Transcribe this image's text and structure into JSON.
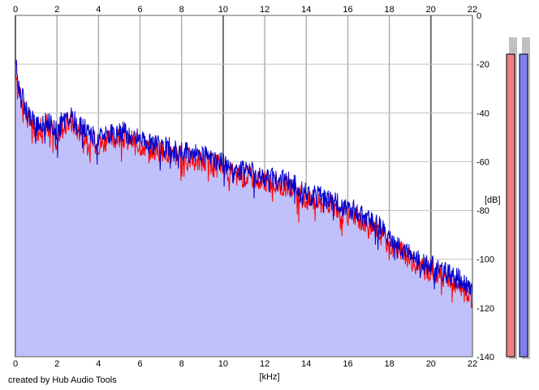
{
  "footer": {
    "credit": "created by Hub Audio Tools"
  },
  "chart_data": {
    "type": "area",
    "xlabel": "[kHz]",
    "ylabel": "[dB]",
    "xlim": [
      0,
      22
    ],
    "ylim": [
      -140,
      0
    ],
    "x_ticks": [
      "0",
      "2",
      "4",
      "6",
      "8",
      "10",
      "12",
      "14",
      "16",
      "18",
      "20",
      "22"
    ],
    "y_ticks": [
      "0",
      "-20",
      "-40",
      "-60",
      "-80",
      "-100",
      "-120",
      "-140"
    ],
    "grid": true,
    "colors": {
      "left": "#ff0000",
      "right": "#0000cc",
      "fill": "#c0c0fa",
      "meter_left": "#f08080",
      "meter_right": "#8080f0"
    },
    "series": [
      {
        "x": [
          0,
          0.1,
          0.2,
          0.4,
          0.6,
          0.8,
          1,
          1.2,
          1.5,
          1.8,
          2,
          2.2,
          2.5,
          2.8,
          3,
          3.2,
          3.5,
          3.8,
          4,
          4.3,
          4.6,
          5,
          5.3,
          5.6,
          6,
          6.3,
          6.6,
          7,
          7.3,
          7.6,
          8,
          8.3,
          8.6,
          9,
          9.3,
          9.6,
          10,
          10.3,
          10.6,
          11,
          11.3,
          11.6,
          12,
          12.3,
          12.6,
          13,
          13.3,
          13.6,
          14,
          14.3,
          14.6,
          15,
          15.3,
          15.6,
          16,
          16.3,
          16.6,
          17,
          17.3,
          17.6,
          18,
          18.3,
          18.6,
          19,
          19.3,
          19.6,
          20,
          20.3,
          20.6,
          21,
          21.3,
          21.6,
          22
        ],
        "values": [
          -22,
          -28,
          -32,
          -38,
          -42,
          -45,
          -48,
          -46,
          -45,
          -48,
          -50,
          -47,
          -44,
          -45,
          -47,
          -48,
          -50,
          -52,
          -53,
          -52,
          -51,
          -50,
          -50,
          -51,
          -53,
          -54,
          -55,
          -56,
          -56,
          -57,
          -58,
          -58,
          -59,
          -60,
          -60,
          -61,
          -62,
          -64,
          -66,
          -66,
          -66,
          -67,
          -68,
          -69,
          -69,
          -70,
          -71,
          -73,
          -76,
          -76,
          -77,
          -77,
          -78,
          -80,
          -82,
          -82,
          -84,
          -87,
          -88,
          -90,
          -94,
          -96,
          -97,
          -100,
          -102,
          -104,
          -104,
          -106,
          -107,
          -108,
          -110,
          -112,
          -116
        ]
      },
      {
        "x": [
          0,
          0.1,
          0.2,
          0.4,
          0.6,
          0.8,
          1,
          1.2,
          1.5,
          1.8,
          2,
          2.2,
          2.5,
          2.8,
          3,
          3.2,
          3.5,
          3.8,
          4,
          4.3,
          4.6,
          5,
          5.3,
          5.6,
          6,
          6.3,
          6.6,
          7,
          7.3,
          7.6,
          8,
          8.3,
          8.6,
          9,
          9.3,
          9.6,
          10,
          10.3,
          10.6,
          11,
          11.3,
          11.6,
          12,
          12.3,
          12.6,
          13,
          13.3,
          13.6,
          14,
          14.3,
          14.6,
          15,
          15.3,
          15.6,
          16,
          16.3,
          16.6,
          17,
          17.3,
          17.6,
          18,
          18.3,
          18.6,
          19,
          19.3,
          19.6,
          20,
          20.3,
          20.6,
          21,
          21.3,
          21.6,
          22
        ],
        "values": [
          -20,
          -25,
          -30,
          -36,
          -40,
          -43,
          -46,
          -44,
          -43,
          -46,
          -48,
          -44,
          -41,
          -43,
          -45,
          -46,
          -48,
          -50,
          -51,
          -50,
          -49,
          -48,
          -48,
          -49,
          -51,
          -52,
          -53,
          -54,
          -54,
          -55,
          -56,
          -56,
          -57,
          -57,
          -58,
          -59,
          -60,
          -62,
          -64,
          -64,
          -64,
          -65,
          -66,
          -67,
          -67,
          -68,
          -69,
          -70,
          -73,
          -74,
          -74,
          -75,
          -76,
          -78,
          -79,
          -80,
          -81,
          -84,
          -85,
          -87,
          -91,
          -94,
          -95,
          -98,
          -100,
          -102,
          -102,
          -104,
          -105,
          -106,
          -107,
          -110,
          -113
        ]
      }
    ],
    "meters": {
      "left_level": 0.94,
      "right_level": 0.94
    }
  }
}
